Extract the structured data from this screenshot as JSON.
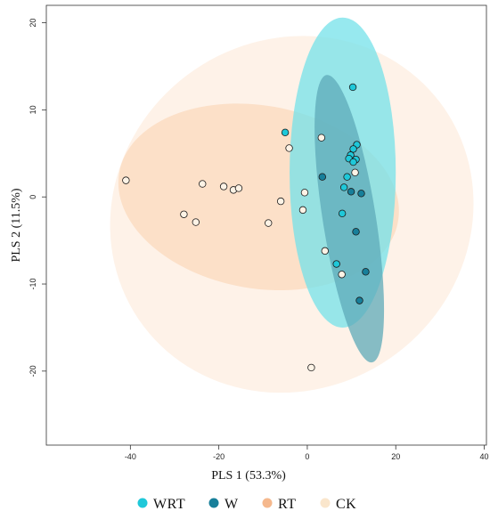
{
  "chart_data": {
    "type": "scatter",
    "title": "",
    "xlabel": "PLS 1 (53.3%)",
    "ylabel": "PLS 2 (11.5%)",
    "xlim": [
      -59,
      40.5
    ],
    "ylim": [
      -28.5,
      22
    ],
    "x_ticks": [
      -40,
      -20,
      0,
      20,
      40
    ],
    "y_ticks": [
      -20,
      -10,
      0,
      10,
      20
    ],
    "x_tick_labels": [
      "-40",
      "-20",
      "0",
      "20",
      "40"
    ],
    "y_tick_labels": [
      "-20",
      "-10",
      "0",
      "10",
      "20"
    ],
    "grid": false,
    "legend_position": "bottom",
    "series": [
      {
        "name": "WRT",
        "color": "#1fc8d9",
        "points": [
          {
            "x": 10.3,
            "y": 12.6
          },
          {
            "x": -5.0,
            "y": 7.4
          },
          {
            "x": 11.2,
            "y": 6.0
          },
          {
            "x": 10.4,
            "y": 5.5
          },
          {
            "x": 9.8,
            "y": 4.8
          },
          {
            "x": 9.4,
            "y": 4.4
          },
          {
            "x": 11.0,
            "y": 4.3
          },
          {
            "x": 10.4,
            "y": 4.0
          },
          {
            "x": 9.0,
            "y": 2.3
          },
          {
            "x": 8.3,
            "y": 1.1
          },
          {
            "x": 7.9,
            "y": -1.9
          },
          {
            "x": 6.6,
            "y": -7.7
          }
        ]
      },
      {
        "name": "W",
        "color": "#177f9a",
        "points": [
          {
            "x": 3.4,
            "y": 2.3
          },
          {
            "x": 9.9,
            "y": 0.6
          },
          {
            "x": 12.2,
            "y": 0.4
          },
          {
            "x": 11.0,
            "y": -4.0
          },
          {
            "x": 13.2,
            "y": -8.6
          },
          {
            "x": 11.8,
            "y": -11.9
          }
        ]
      },
      {
        "name": "RT",
        "color": "#f5b88d",
        "points": []
      },
      {
        "name": "CK",
        "color": "#fae6cc",
        "points": [
          {
            "x": -41.0,
            "y": 1.9
          },
          {
            "x": -23.7,
            "y": 1.5
          },
          {
            "x": -18.9,
            "y": 1.2
          },
          {
            "x": -16.7,
            "y": 0.8
          },
          {
            "x": -15.5,
            "y": 1.0
          },
          {
            "x": -6.0,
            "y": -0.5
          },
          {
            "x": -27.9,
            "y": -2.0
          },
          {
            "x": -25.2,
            "y": -2.9
          },
          {
            "x": -8.8,
            "y": -3.0
          },
          {
            "x": -4.1,
            "y": 5.6
          },
          {
            "x": 3.2,
            "y": 6.8
          },
          {
            "x": 10.8,
            "y": 2.8
          },
          {
            "x": -0.6,
            "y": 0.5
          },
          {
            "x": -1.0,
            "y": -1.5
          },
          {
            "x": 4.0,
            "y": -6.2
          },
          {
            "x": 7.8,
            "y": -8.9
          },
          {
            "x": 0.9,
            "y": -19.6
          }
        ]
      }
    ],
    "confidence_ellipses": [
      {
        "group": "CK",
        "center": [
          -3.5,
          -2.0
        ],
        "semi_axes": [
          42.0,
          20.0
        ],
        "rotation_deg": -37,
        "color": "#fdeee0"
      },
      {
        "group": "RT",
        "center": [
          -11.0,
          0.0
        ],
        "semi_axes": [
          32.0,
          10.5
        ],
        "rotation_deg": 10,
        "color": "#fbd9bd"
      },
      {
        "group": "WRT",
        "center": [
          8.0,
          2.8
        ],
        "semi_axes": [
          12.0,
          17.8
        ],
        "rotation_deg": 0,
        "color": "#74e1ea"
      },
      {
        "group": "W",
        "center": [
          9.5,
          -2.5
        ],
        "semi_axes": [
          6.0,
          16.7
        ],
        "rotation_deg": -9,
        "color": "#5eaab8"
      }
    ]
  }
}
